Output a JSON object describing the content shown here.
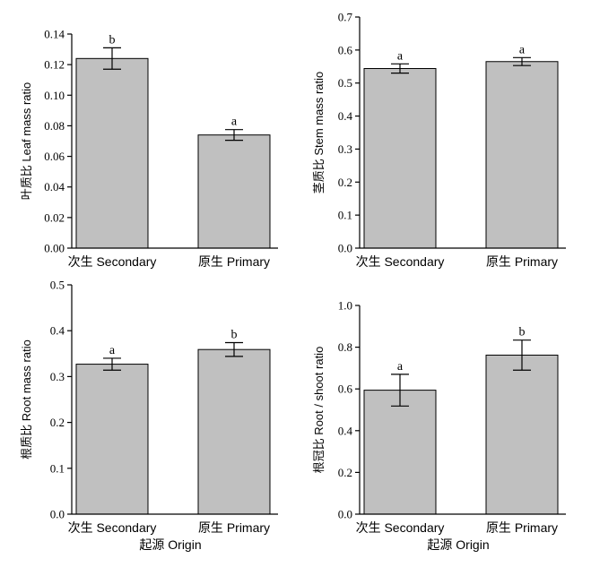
{
  "chart_data": [
    {
      "type": "bar",
      "categories": [
        "次生 Secondary",
        "原生 Primary"
      ],
      "values": [
        0.124,
        0.074
      ],
      "errors": [
        0.007,
        0.0035
      ],
      "letters": [
        "b",
        "a"
      ],
      "ylabel": "叶质比 Leaf mass ratio",
      "xlabel": "",
      "ylim": [
        0,
        0.14
      ],
      "yticks": [
        "0.00",
        "0.02",
        "0.04",
        "0.06",
        "0.08",
        "0.10",
        "0.12",
        "0.14"
      ],
      "colors": {
        "bar": "#c0c0c0",
        "edge": "#000000"
      }
    },
    {
      "type": "bar",
      "categories": [
        "次生 Secondary",
        "原生 Primary"
      ],
      "values": [
        0.544,
        0.565
      ],
      "errors": [
        0.014,
        0.012
      ],
      "letters": [
        "a",
        "a"
      ],
      "ylabel": "茎质比 Stem mass ratio",
      "xlabel": "",
      "ylim": [
        0,
        0.7
      ],
      "yticks": [
        "0.0",
        "0.1",
        "0.2",
        "0.3",
        "0.4",
        "0.5",
        "0.6",
        "0.7"
      ],
      "colors": {
        "bar": "#c0c0c0",
        "edge": "#000000"
      }
    },
    {
      "type": "bar",
      "categories": [
        "次生 Secondary",
        "原生 Primary"
      ],
      "values": [
        0.327,
        0.359
      ],
      "errors": [
        0.013,
        0.015
      ],
      "letters": [
        "a",
        "b"
      ],
      "ylabel": "根质比 Root mass ratio",
      "xlabel": "起源 Origin",
      "ylim": [
        0,
        0.5
      ],
      "yticks": [
        "0.0",
        "0.1",
        "0.2",
        "0.3",
        "0.4",
        "0.5"
      ],
      "colors": {
        "bar": "#c0c0c0",
        "edge": "#000000"
      }
    },
    {
      "type": "bar",
      "categories": [
        "次生 Secondary",
        "原生 Primary"
      ],
      "values": [
        0.594,
        0.762
      ],
      "errors": [
        0.076,
        0.072
      ],
      "letters": [
        "a",
        "b"
      ],
      "ylabel": "根冠比 Root / shoot ratio",
      "xlabel": "起源 Origin",
      "ylim": [
        0,
        1.0
      ],
      "yticks": [
        "0.0",
        "0.2",
        "0.4",
        "0.6",
        "0.8",
        "1.0"
      ],
      "colors": {
        "bar": "#c0c0c0",
        "edge": "#000000"
      }
    }
  ]
}
